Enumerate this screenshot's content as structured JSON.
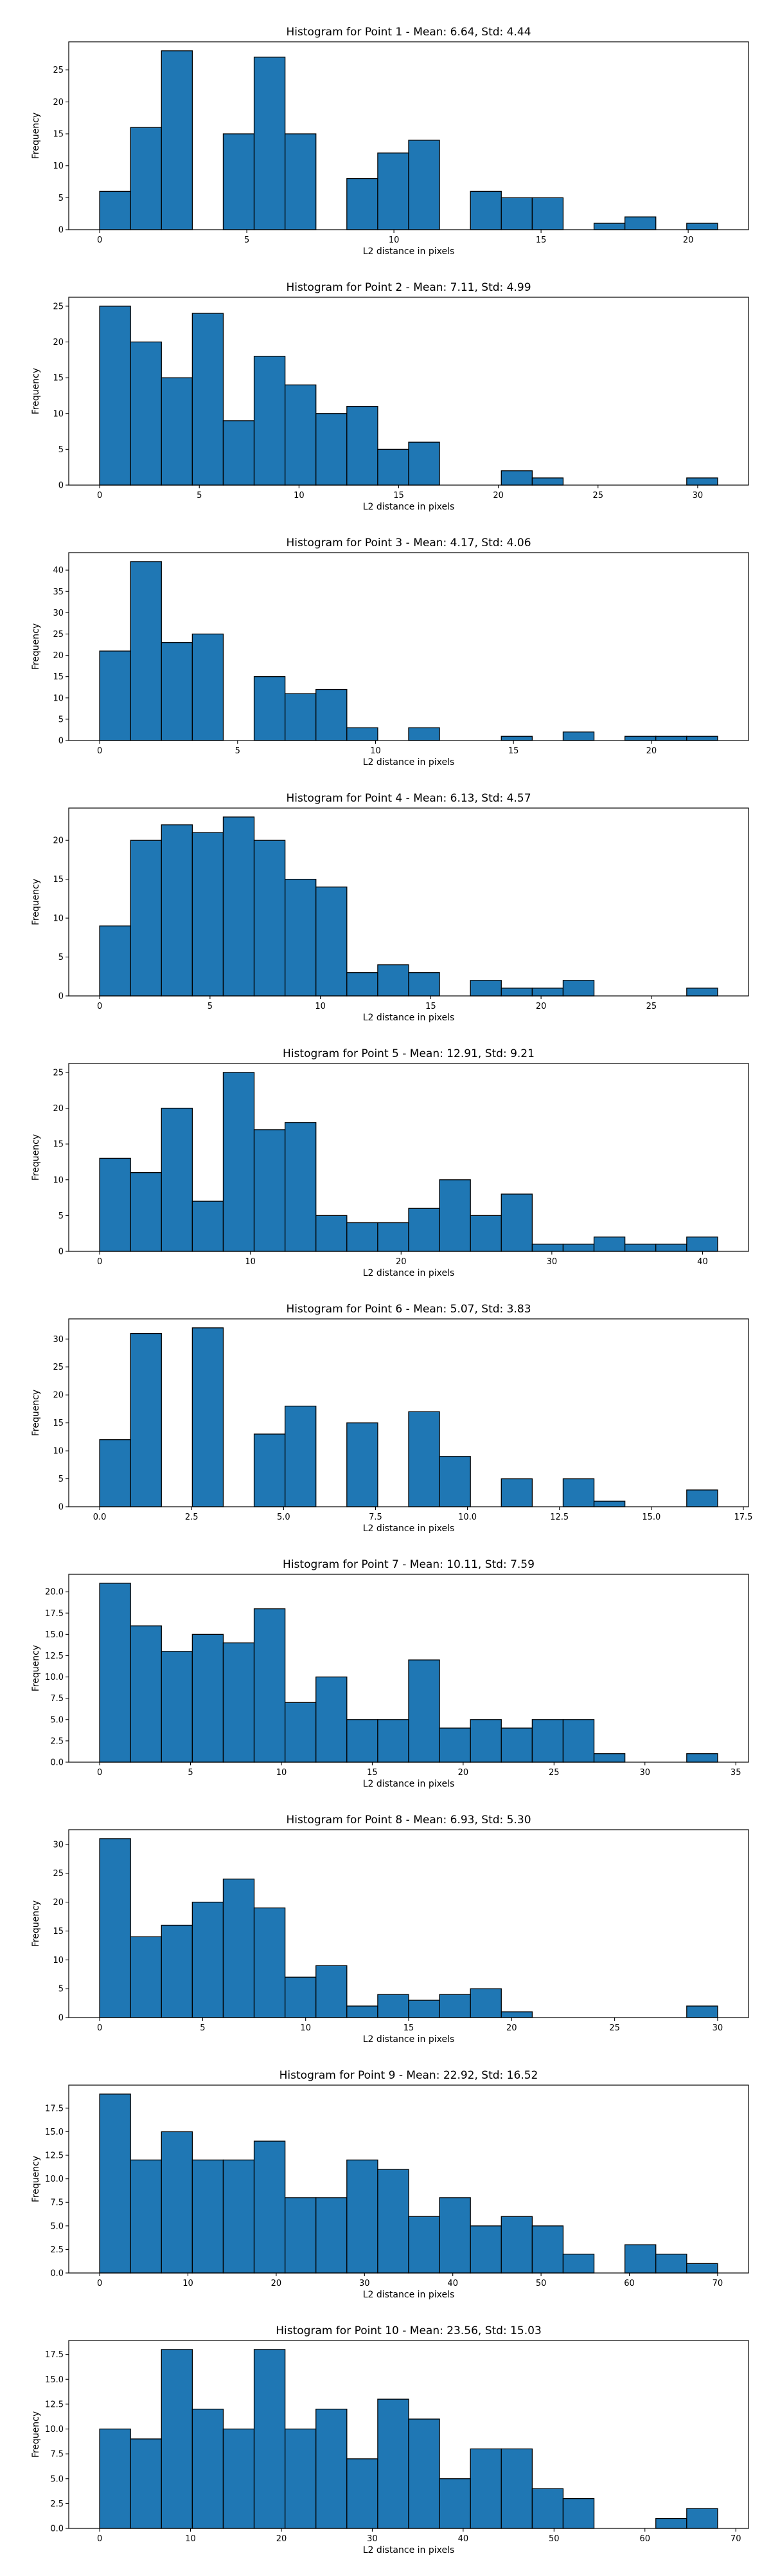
{
  "style": {
    "bar_color": "#1f77b4",
    "edge_color": "#000000",
    "axes_color": "#000000",
    "background": "#ffffff"
  },
  "chart_data": [
    {
      "type": "bar",
      "title": "Histogram for Point 1 - Mean: 6.64, Std: 4.44",
      "xlabel": "L2 distance in pixels",
      "ylabel": "Frequency",
      "xlim": [
        -1.05,
        22.05
      ],
      "ylim": [
        0,
        29.4
      ],
      "xticks": [
        {
          "v": 0,
          "label": "0"
        },
        {
          "v": 5,
          "label": "5"
        },
        {
          "v": 10,
          "label": "10"
        },
        {
          "v": 15,
          "label": "15"
        },
        {
          "v": 20,
          "label": "20"
        }
      ],
      "yticks": [
        {
          "v": 0,
          "label": "0"
        },
        {
          "v": 5,
          "label": "5"
        },
        {
          "v": 10,
          "label": "10"
        },
        {
          "v": 15,
          "label": "15"
        },
        {
          "v": 20,
          "label": "20"
        },
        {
          "v": 25,
          "label": "25"
        }
      ],
      "bins": {
        "start": 0.0,
        "width": 1.05
      },
      "counts": [
        6,
        16,
        28,
        0,
        15,
        27,
        15,
        0,
        8,
        12,
        14,
        0,
        6,
        5,
        5,
        0,
        1,
        2,
        0,
        1
      ]
    },
    {
      "type": "bar",
      "title": "Histogram for Point 2 - Mean: 7.11, Std: 4.99",
      "xlabel": "L2 distance in pixels",
      "ylabel": "Frequency",
      "xlim": [
        -1.55,
        32.55
      ],
      "ylim": [
        0,
        26.25
      ],
      "xticks": [
        {
          "v": 0,
          "label": "0"
        },
        {
          "v": 5,
          "label": "5"
        },
        {
          "v": 10,
          "label": "10"
        },
        {
          "v": 15,
          "label": "15"
        },
        {
          "v": 20,
          "label": "20"
        },
        {
          "v": 25,
          "label": "25"
        },
        {
          "v": 30,
          "label": "30"
        }
      ],
      "yticks": [
        {
          "v": 0,
          "label": "0"
        },
        {
          "v": 5,
          "label": "5"
        },
        {
          "v": 10,
          "label": "10"
        },
        {
          "v": 15,
          "label": "15"
        },
        {
          "v": 20,
          "label": "20"
        },
        {
          "v": 25,
          "label": "25"
        }
      ],
      "bins": {
        "start": 0.0,
        "width": 1.55
      },
      "counts": [
        25,
        20,
        15,
        24,
        9,
        18,
        14,
        10,
        11,
        5,
        6,
        0,
        0,
        2,
        1,
        0,
        0,
        0,
        0,
        1
      ]
    },
    {
      "type": "bar",
      "title": "Histogram for Point 3 - Mean: 4.17, Std: 4.06",
      "xlabel": "L2 distance in pixels",
      "ylabel": "Frequency",
      "xlim": [
        -1.12,
        23.52
      ],
      "ylim": [
        0,
        44.1
      ],
      "xticks": [
        {
          "v": 0,
          "label": "0"
        },
        {
          "v": 5,
          "label": "5"
        },
        {
          "v": 10,
          "label": "10"
        },
        {
          "v": 15,
          "label": "15"
        },
        {
          "v": 20,
          "label": "20"
        }
      ],
      "yticks": [
        {
          "v": 0,
          "label": "0"
        },
        {
          "v": 5,
          "label": "5"
        },
        {
          "v": 10,
          "label": "10"
        },
        {
          "v": 15,
          "label": "15"
        },
        {
          "v": 20,
          "label": "20"
        },
        {
          "v": 25,
          "label": "25"
        },
        {
          "v": 30,
          "label": "30"
        },
        {
          "v": 35,
          "label": "35"
        },
        {
          "v": 40,
          "label": "40"
        }
      ],
      "bins": {
        "start": 0.0,
        "width": 1.12
      },
      "counts": [
        21,
        42,
        23,
        25,
        0,
        15,
        11,
        12,
        3,
        0,
        3,
        0,
        0,
        1,
        0,
        2,
        0,
        1,
        1,
        1
      ]
    },
    {
      "type": "bar",
      "title": "Histogram for Point 4 - Mean: 6.13, Std: 4.57",
      "xlabel": "L2 distance in pixels",
      "ylabel": "Frequency",
      "xlim": [
        -1.4,
        29.4
      ],
      "ylim": [
        0,
        24.15
      ],
      "xticks": [
        {
          "v": 0,
          "label": "0"
        },
        {
          "v": 5,
          "label": "5"
        },
        {
          "v": 10,
          "label": "10"
        },
        {
          "v": 15,
          "label": "15"
        },
        {
          "v": 20,
          "label": "20"
        },
        {
          "v": 25,
          "label": "25"
        }
      ],
      "yticks": [
        {
          "v": 0,
          "label": "0"
        },
        {
          "v": 5,
          "label": "5"
        },
        {
          "v": 10,
          "label": "10"
        },
        {
          "v": 15,
          "label": "15"
        },
        {
          "v": 20,
          "label": "20"
        }
      ],
      "bins": {
        "start": 0.0,
        "width": 1.4
      },
      "counts": [
        9,
        20,
        22,
        21,
        23,
        20,
        15,
        14,
        3,
        4,
        3,
        0,
        2,
        1,
        1,
        2,
        0,
        0,
        0,
        1
      ]
    },
    {
      "type": "bar",
      "title": "Histogram for Point 5 - Mean: 12.91, Std: 9.21",
      "xlabel": "L2 distance in pixels",
      "ylabel": "Frequency",
      "xlim": [
        -2.05,
        43.05
      ],
      "ylim": [
        0,
        26.25
      ],
      "xticks": [
        {
          "v": 0,
          "label": "0"
        },
        {
          "v": 10,
          "label": "10"
        },
        {
          "v": 20,
          "label": "20"
        },
        {
          "v": 30,
          "label": "30"
        },
        {
          "v": 40,
          "label": "40"
        }
      ],
      "yticks": [
        {
          "v": 0,
          "label": "0"
        },
        {
          "v": 5,
          "label": "5"
        },
        {
          "v": 10,
          "label": "10"
        },
        {
          "v": 15,
          "label": "15"
        },
        {
          "v": 20,
          "label": "20"
        },
        {
          "v": 25,
          "label": "25"
        }
      ],
      "bins": {
        "start": 0.0,
        "width": 2.05
      },
      "counts": [
        13,
        11,
        20,
        7,
        25,
        17,
        18,
        5,
        4,
        4,
        6,
        10,
        5,
        8,
        1,
        1,
        2,
        1,
        1,
        2
      ]
    },
    {
      "type": "bar",
      "title": "Histogram for Point 6 - Mean: 5.07, Std: 3.83",
      "xlabel": "L2 distance in pixels",
      "ylabel": "Frequency",
      "xlim": [
        -0.84,
        17.64
      ],
      "ylim": [
        0,
        33.6
      ],
      "xticks": [
        {
          "v": 0,
          "label": "0.0"
        },
        {
          "v": 2.5,
          "label": "2.5"
        },
        {
          "v": 5,
          "label": "5.0"
        },
        {
          "v": 7.5,
          "label": "7.5"
        },
        {
          "v": 10,
          "label": "10.0"
        },
        {
          "v": 12.5,
          "label": "12.5"
        },
        {
          "v": 15,
          "label": "15.0"
        },
        {
          "v": 17.5,
          "label": "17.5"
        }
      ],
      "yticks": [
        {
          "v": 0,
          "label": "0"
        },
        {
          "v": 5,
          "label": "5"
        },
        {
          "v": 10,
          "label": "10"
        },
        {
          "v": 15,
          "label": "15"
        },
        {
          "v": 20,
          "label": "20"
        },
        {
          "v": 25,
          "label": "25"
        },
        {
          "v": 30,
          "label": "30"
        }
      ],
      "bins": {
        "start": 0.0,
        "width": 0.84
      },
      "counts": [
        12,
        31,
        0,
        32,
        0,
        13,
        18,
        0,
        15,
        0,
        17,
        9,
        0,
        5,
        0,
        5,
        1,
        0,
        0,
        3
      ]
    },
    {
      "type": "bar",
      "title": "Histogram for Point 7 - Mean: 10.11, Std: 7.59",
      "xlabel": "L2 distance in pixels",
      "ylabel": "Frequency",
      "xlim": [
        -1.7,
        35.7
      ],
      "ylim": [
        0,
        22.05
      ],
      "xticks": [
        {
          "v": 0,
          "label": "0"
        },
        {
          "v": 5,
          "label": "5"
        },
        {
          "v": 10,
          "label": "10"
        },
        {
          "v": 15,
          "label": "15"
        },
        {
          "v": 20,
          "label": "20"
        },
        {
          "v": 25,
          "label": "25"
        },
        {
          "v": 30,
          "label": "30"
        },
        {
          "v": 35,
          "label": "35"
        }
      ],
      "yticks": [
        {
          "v": 0,
          "label": "0.0"
        },
        {
          "v": 2.5,
          "label": "2.5"
        },
        {
          "v": 5,
          "label": "5.0"
        },
        {
          "v": 7.5,
          "label": "7.5"
        },
        {
          "v": 10,
          "label": "10.0"
        },
        {
          "v": 12.5,
          "label": "12.5"
        },
        {
          "v": 15,
          "label": "15.0"
        },
        {
          "v": 17.5,
          "label": "17.5"
        },
        {
          "v": 20,
          "label": "20.0"
        }
      ],
      "bins": {
        "start": 0.0,
        "width": 1.7
      },
      "counts": [
        21,
        16,
        13,
        15,
        14,
        18,
        7,
        10,
        5,
        5,
        12,
        4,
        5,
        4,
        5,
        5,
        1,
        0,
        0,
        1
      ]
    },
    {
      "type": "bar",
      "title": "Histogram for Point 8 - Mean: 6.93, Std: 5.30",
      "xlabel": "L2 distance in pixels",
      "ylabel": "Frequency",
      "xlim": [
        -1.5,
        31.5
      ],
      "ylim": [
        0,
        32.55
      ],
      "xticks": [
        {
          "v": 0,
          "label": "0"
        },
        {
          "v": 5,
          "label": "5"
        },
        {
          "v": 10,
          "label": "10"
        },
        {
          "v": 15,
          "label": "15"
        },
        {
          "v": 20,
          "label": "20"
        },
        {
          "v": 25,
          "label": "25"
        },
        {
          "v": 30,
          "label": "30"
        }
      ],
      "yticks": [
        {
          "v": 0,
          "label": "0"
        },
        {
          "v": 5,
          "label": "5"
        },
        {
          "v": 10,
          "label": "10"
        },
        {
          "v": 15,
          "label": "15"
        },
        {
          "v": 20,
          "label": "20"
        },
        {
          "v": 25,
          "label": "25"
        },
        {
          "v": 30,
          "label": "30"
        }
      ],
      "bins": {
        "start": 0.0,
        "width": 1.5
      },
      "counts": [
        31,
        14,
        16,
        20,
        24,
        19,
        7,
        9,
        2,
        4,
        3,
        4,
        5,
        1,
        0,
        0,
        0,
        0,
        0,
        2
      ]
    },
    {
      "type": "bar",
      "title": "Histogram for Point 9 - Mean: 22.92, Std: 16.52",
      "xlabel": "L2 distance in pixels",
      "ylabel": "Frequency",
      "xlim": [
        -3.5,
        73.5
      ],
      "ylim": [
        0,
        19.95
      ],
      "xticks": [
        {
          "v": 0,
          "label": "0"
        },
        {
          "v": 10,
          "label": "10"
        },
        {
          "v": 20,
          "label": "20"
        },
        {
          "v": 30,
          "label": "30"
        },
        {
          "v": 40,
          "label": "40"
        },
        {
          "v": 50,
          "label": "50"
        },
        {
          "v": 60,
          "label": "60"
        },
        {
          "v": 70,
          "label": "70"
        }
      ],
      "yticks": [
        {
          "v": 0,
          "label": "0.0"
        },
        {
          "v": 2.5,
          "label": "2.5"
        },
        {
          "v": 5,
          "label": "5.0"
        },
        {
          "v": 7.5,
          "label": "7.5"
        },
        {
          "v": 10,
          "label": "10.0"
        },
        {
          "v": 12.5,
          "label": "12.5"
        },
        {
          "v": 15,
          "label": "15.0"
        },
        {
          "v": 17.5,
          "label": "17.5"
        }
      ],
      "bins": {
        "start": 0.0,
        "width": 3.5
      },
      "counts": [
        19,
        12,
        15,
        12,
        12,
        14,
        8,
        8,
        12,
        11,
        6,
        8,
        5,
        6,
        5,
        2,
        0,
        3,
        2,
        1
      ]
    },
    {
      "type": "bar",
      "title": "Histogram for Point 10 - Mean: 23.56, Std: 15.03",
      "xlabel": "L2 distance in pixels",
      "ylabel": "Frequency",
      "xlim": [
        -3.4,
        71.4
      ],
      "ylim": [
        0,
        18.9
      ],
      "xticks": [
        {
          "v": 0,
          "label": "0"
        },
        {
          "v": 10,
          "label": "10"
        },
        {
          "v": 20,
          "label": "20"
        },
        {
          "v": 30,
          "label": "30"
        },
        {
          "v": 40,
          "label": "40"
        },
        {
          "v": 50,
          "label": "50"
        },
        {
          "v": 60,
          "label": "60"
        },
        {
          "v": 70,
          "label": "70"
        }
      ],
      "yticks": [
        {
          "v": 0,
          "label": "0.0"
        },
        {
          "v": 2.5,
          "label": "2.5"
        },
        {
          "v": 5,
          "label": "5.0"
        },
        {
          "v": 7.5,
          "label": "7.5"
        },
        {
          "v": 10,
          "label": "10.0"
        },
        {
          "v": 12.5,
          "label": "12.5"
        },
        {
          "v": 15,
          "label": "15.0"
        },
        {
          "v": 17.5,
          "label": "17.5"
        }
      ],
      "bins": {
        "start": 0.0,
        "width": 3.4
      },
      "counts": [
        10,
        9,
        18,
        12,
        10,
        18,
        10,
        12,
        7,
        13,
        11,
        5,
        8,
        8,
        4,
        3,
        0,
        0,
        1,
        2
      ]
    }
  ]
}
